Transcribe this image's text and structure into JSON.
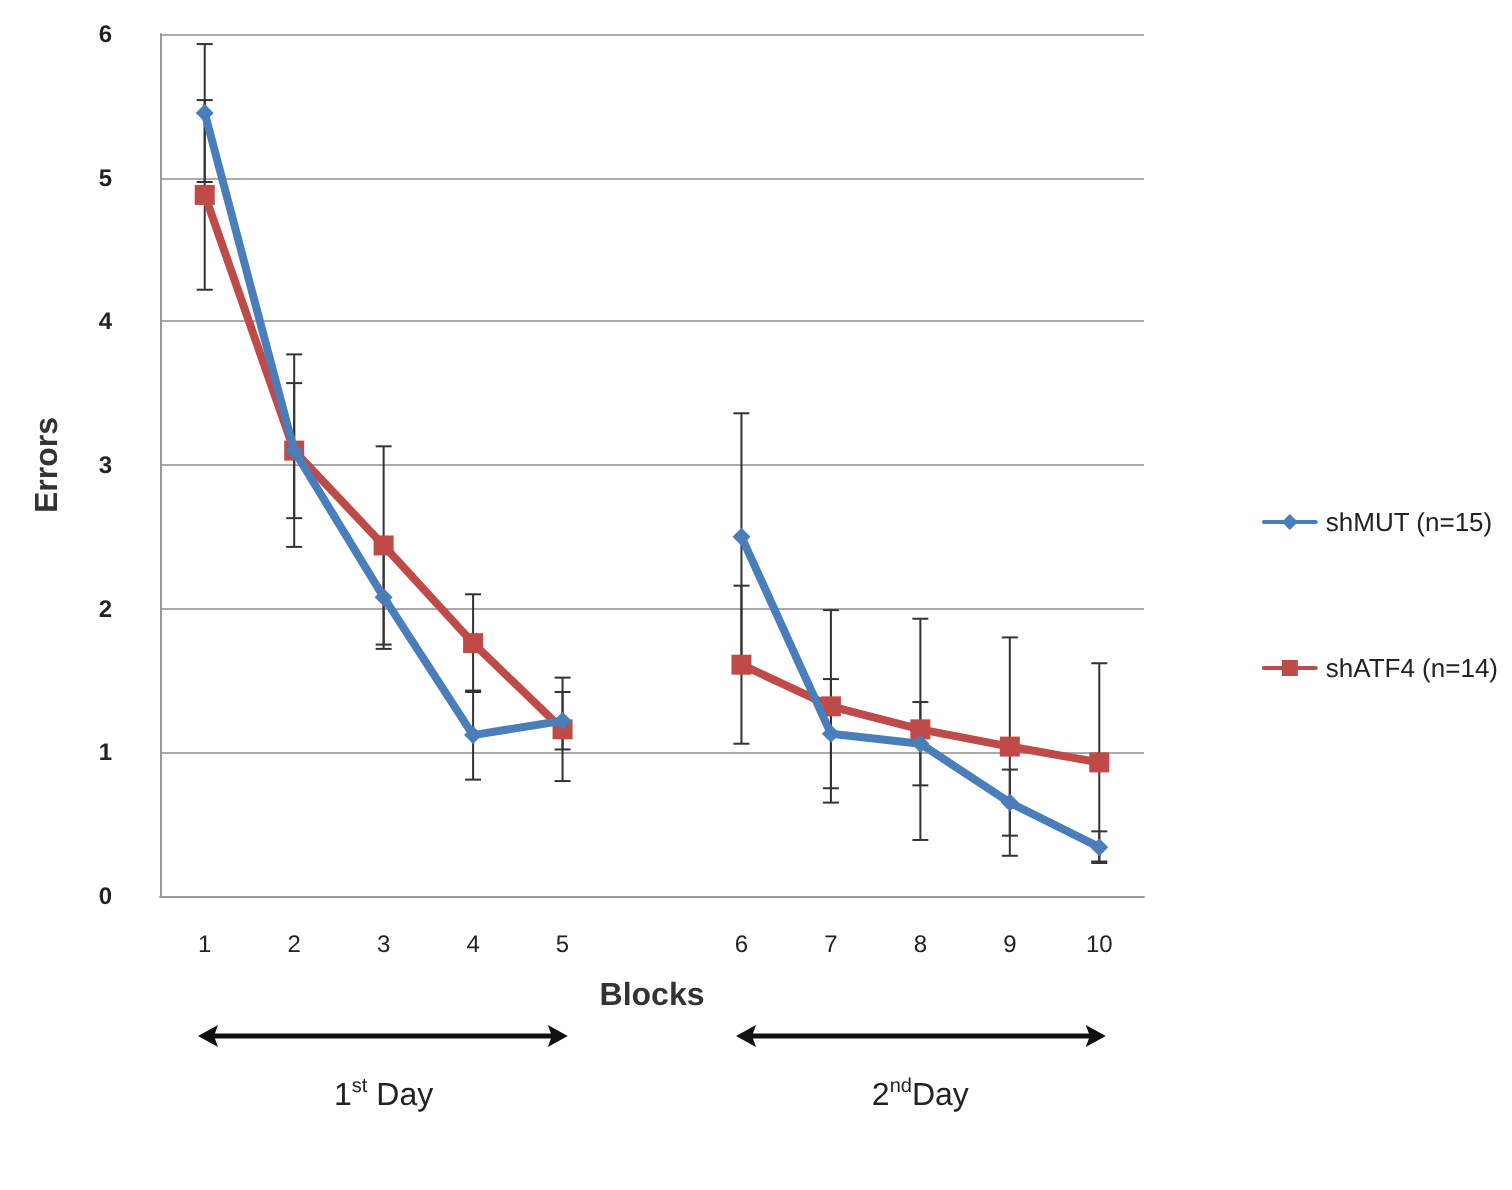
{
  "chart_data": {
    "type": "line",
    "xlabel": "Blocks",
    "ylabel": "Errors",
    "categories": [
      "1",
      "2",
      "3",
      "4",
      "5",
      null,
      "6",
      "7",
      "8",
      "9",
      "10"
    ],
    "ylim": [
      0,
      6
    ],
    "yticks": [
      0,
      1,
      2,
      3,
      4,
      5,
      6
    ],
    "grid": "y",
    "legend": "right",
    "series": [
      {
        "name": "shMUT (n=15)",
        "color": "#4a7ebb",
        "marker": "diamond",
        "values": [
          5.45,
          3.1,
          2.08,
          1.12,
          1.22,
          null,
          2.5,
          1.13,
          1.06,
          0.65,
          0.34
        ],
        "errors": [
          0.48,
          0.47,
          0.36,
          0.31,
          0.2,
          null,
          0.86,
          0.38,
          0.29,
          0.23,
          0.11
        ]
      },
      {
        "name": "shATF4 (n=14)",
        "color": "#be4b48",
        "marker": "square",
        "values": [
          4.88,
          3.1,
          2.44,
          1.76,
          1.16,
          null,
          1.61,
          1.32,
          1.16,
          1.04,
          0.93
        ],
        "errors": [
          0.66,
          0.67,
          0.69,
          0.34,
          0.36,
          null,
          0.55,
          0.67,
          0.77,
          0.76,
          0.69
        ]
      }
    ],
    "annotations": [
      "1$^{st}$ Day",
      "2$^{nd}$Day"
    ]
  }
}
